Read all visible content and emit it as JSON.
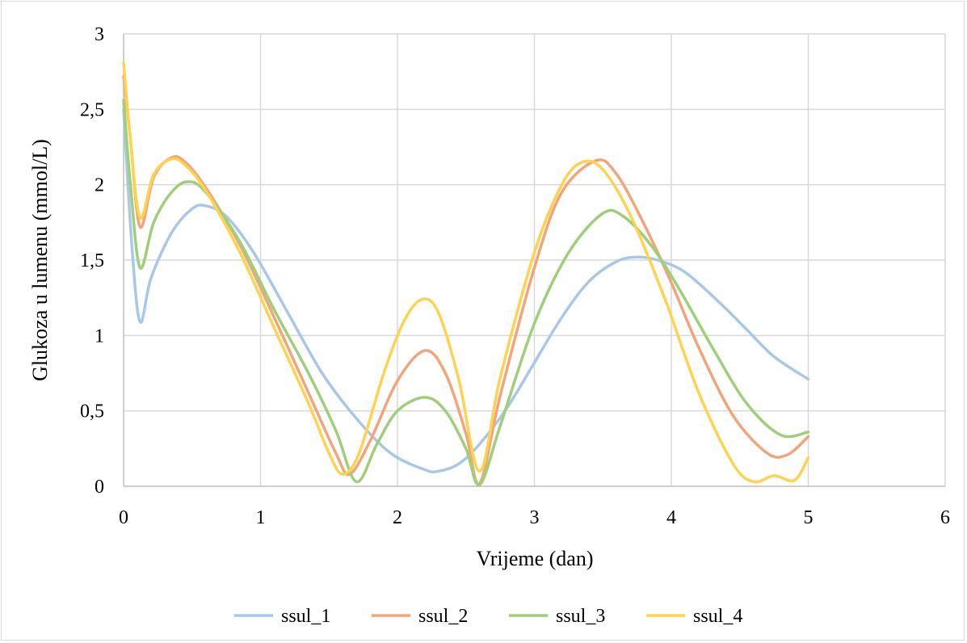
{
  "chart_data": {
    "type": "line",
    "title": "",
    "xlabel": "Vrijeme (dan)",
    "ylabel": "Glukoza u lumenu (mmol/L)",
    "xlim": [
      0,
      6
    ],
    "ylim": [
      0,
      3
    ],
    "xticks": [
      0,
      1,
      2,
      3,
      4,
      5,
      6
    ],
    "xtick_labels": [
      "0",
      "1",
      "2",
      "3",
      "4",
      "5",
      "6"
    ],
    "yticks": [
      0,
      0.5,
      1,
      1.5,
      2,
      2.5,
      3
    ],
    "ytick_labels": [
      "0",
      "0,5",
      "1",
      "1,5",
      "2",
      "2,5",
      "3"
    ],
    "grid": true,
    "legend_position": "bottom",
    "series": [
      {
        "name": "ssul_1",
        "color": "#a9c8e8",
        "points": [
          [
            0,
            2.5
          ],
          [
            0.06,
            1.6
          ],
          [
            0.12,
            1.09
          ],
          [
            0.2,
            1.38
          ],
          [
            0.35,
            1.68
          ],
          [
            0.5,
            1.84
          ],
          [
            0.6,
            1.86
          ],
          [
            0.75,
            1.79
          ],
          [
            0.95,
            1.55
          ],
          [
            1.2,
            1.15
          ],
          [
            1.45,
            0.75
          ],
          [
            1.7,
            0.45
          ],
          [
            1.95,
            0.22
          ],
          [
            2.2,
            0.11
          ],
          [
            2.3,
            0.1
          ],
          [
            2.45,
            0.15
          ],
          [
            2.6,
            0.28
          ],
          [
            2.8,
            0.52
          ],
          [
            3.0,
            0.82
          ],
          [
            3.2,
            1.12
          ],
          [
            3.4,
            1.36
          ],
          [
            3.6,
            1.49
          ],
          [
            3.75,
            1.52
          ],
          [
            3.9,
            1.5
          ],
          [
            4.1,
            1.42
          ],
          [
            4.35,
            1.22
          ],
          [
            4.55,
            1.04
          ],
          [
            4.75,
            0.86
          ],
          [
            5.0,
            0.71
          ]
        ]
      },
      {
        "name": "ssul_2",
        "color": "#f2a57c",
        "points": [
          [
            0,
            2.72
          ],
          [
            0.05,
            2.3
          ],
          [
            0.12,
            1.72
          ],
          [
            0.22,
            2.05
          ],
          [
            0.35,
            2.18
          ],
          [
            0.45,
            2.15
          ],
          [
            0.6,
            1.98
          ],
          [
            0.85,
            1.6
          ],
          [
            1.1,
            1.12
          ],
          [
            1.35,
            0.62
          ],
          [
            1.55,
            0.22
          ],
          [
            1.65,
            0.08
          ],
          [
            1.8,
            0.3
          ],
          [
            2.0,
            0.7
          ],
          [
            2.2,
            0.9
          ],
          [
            2.35,
            0.75
          ],
          [
            2.5,
            0.35
          ],
          [
            2.6,
            0.02
          ],
          [
            2.75,
            0.6
          ],
          [
            3.0,
            1.45
          ],
          [
            3.2,
            1.95
          ],
          [
            3.45,
            2.16
          ],
          [
            3.6,
            2.07
          ],
          [
            3.8,
            1.74
          ],
          [
            4.0,
            1.35
          ],
          [
            4.2,
            0.92
          ],
          [
            4.45,
            0.47
          ],
          [
            4.7,
            0.22
          ],
          [
            4.85,
            0.21
          ],
          [
            5.0,
            0.33
          ]
        ]
      },
      {
        "name": "ssul_3",
        "color": "#9fcf7a",
        "points": [
          [
            0,
            2.56
          ],
          [
            0.05,
            2.0
          ],
          [
            0.12,
            1.45
          ],
          [
            0.22,
            1.75
          ],
          [
            0.35,
            1.95
          ],
          [
            0.47,
            2.02
          ],
          [
            0.6,
            1.95
          ],
          [
            0.85,
            1.62
          ],
          [
            1.1,
            1.17
          ],
          [
            1.35,
            0.75
          ],
          [
            1.55,
            0.37
          ],
          [
            1.7,
            0.03
          ],
          [
            1.85,
            0.28
          ],
          [
            2.0,
            0.5
          ],
          [
            2.2,
            0.59
          ],
          [
            2.35,
            0.5
          ],
          [
            2.5,
            0.25
          ],
          [
            2.6,
            0.01
          ],
          [
            2.75,
            0.4
          ],
          [
            3.0,
            1.08
          ],
          [
            3.25,
            1.55
          ],
          [
            3.5,
            1.81
          ],
          [
            3.65,
            1.79
          ],
          [
            3.85,
            1.6
          ],
          [
            4.05,
            1.32
          ],
          [
            4.3,
            0.92
          ],
          [
            4.55,
            0.55
          ],
          [
            4.8,
            0.34
          ],
          [
            5.0,
            0.36
          ]
        ]
      },
      {
        "name": "ssul_4",
        "color": "#ffd34f",
        "points": [
          [
            0,
            2.81
          ],
          [
            0.05,
            2.3
          ],
          [
            0.12,
            1.78
          ],
          [
            0.22,
            2.07
          ],
          [
            0.35,
            2.17
          ],
          [
            0.45,
            2.13
          ],
          [
            0.6,
            1.96
          ],
          [
            0.85,
            1.55
          ],
          [
            1.1,
            1.05
          ],
          [
            1.35,
            0.55
          ],
          [
            1.5,
            0.22
          ],
          [
            1.6,
            0.08
          ],
          [
            1.72,
            0.22
          ],
          [
            1.9,
            0.75
          ],
          [
            2.05,
            1.1
          ],
          [
            2.18,
            1.24
          ],
          [
            2.3,
            1.15
          ],
          [
            2.45,
            0.7
          ],
          [
            2.6,
            0.1
          ],
          [
            2.75,
            0.72
          ],
          [
            3.0,
            1.55
          ],
          [
            3.2,
            2.0
          ],
          [
            3.35,
            2.15
          ],
          [
            3.5,
            2.1
          ],
          [
            3.7,
            1.8
          ],
          [
            3.95,
            1.25
          ],
          [
            4.2,
            0.62
          ],
          [
            4.45,
            0.15
          ],
          [
            4.6,
            0.03
          ],
          [
            4.75,
            0.07
          ],
          [
            4.9,
            0.04
          ],
          [
            5.0,
            0.19
          ]
        ]
      }
    ]
  }
}
